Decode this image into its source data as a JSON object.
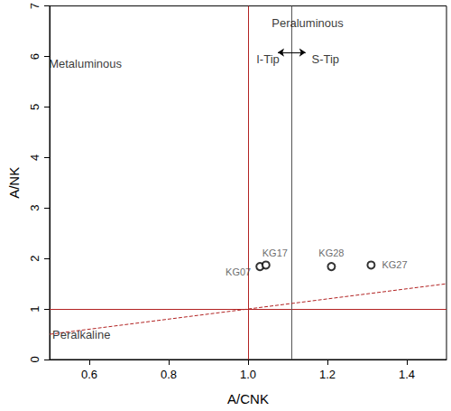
{
  "chart_data": {
    "type": "scatter",
    "x_label": "A/CNK",
    "y_label": "A/NK",
    "xlim": [
      0.5,
      1.5
    ],
    "xticks": [
      0.6,
      0.8,
      {
        "value": 1,
        "label": "1.0"
      },
      1.2,
      1.4
    ],
    "ylim": [
      0,
      7
    ],
    "yticks": [
      0,
      1,
      2,
      3,
      4,
      5,
      6,
      7
    ],
    "grid": false,
    "marker": "open_circle",
    "color": "#000000",
    "points": {
      "names": [
        "KG07",
        "KG17",
        "KG28",
        "KG27"
      ],
      "x": [
        1.03,
        1.045,
        1.21,
        1.31
      ],
      "y": [
        1.84,
        1.87,
        1.84,
        1.87
      ]
    },
    "reference_lines": [
      {
        "x": 1,
        "color": "#b22222",
        "line_style": "solid"
      },
      {
        "y": 1,
        "color": "#b22222",
        "line_style": "solid"
      },
      {
        "x": 1.11,
        "color": "#555555",
        "line_style": "solid"
      },
      {
        "from": [
          0.5,
          0.5
        ],
        "to": [
          1.5,
          1.5
        ],
        "color": "#b22222",
        "line_style": "dashed"
      }
    ],
    "annotations": [
      {
        "text": "Metaluminous",
        "x": 0.59,
        "y": 5.85
      },
      {
        "text": "Peraluminous",
        "x": 1.15,
        "y": 6.67
      },
      {
        "text": "I-Tip",
        "x": 1.05,
        "y": 5.94
      },
      {
        "text": "S-Tip",
        "x": 1.195,
        "y": 5.94
      },
      {
        "text": "Peralkaline",
        "x": 0.58,
        "y": 0.5
      }
    ]
  }
}
